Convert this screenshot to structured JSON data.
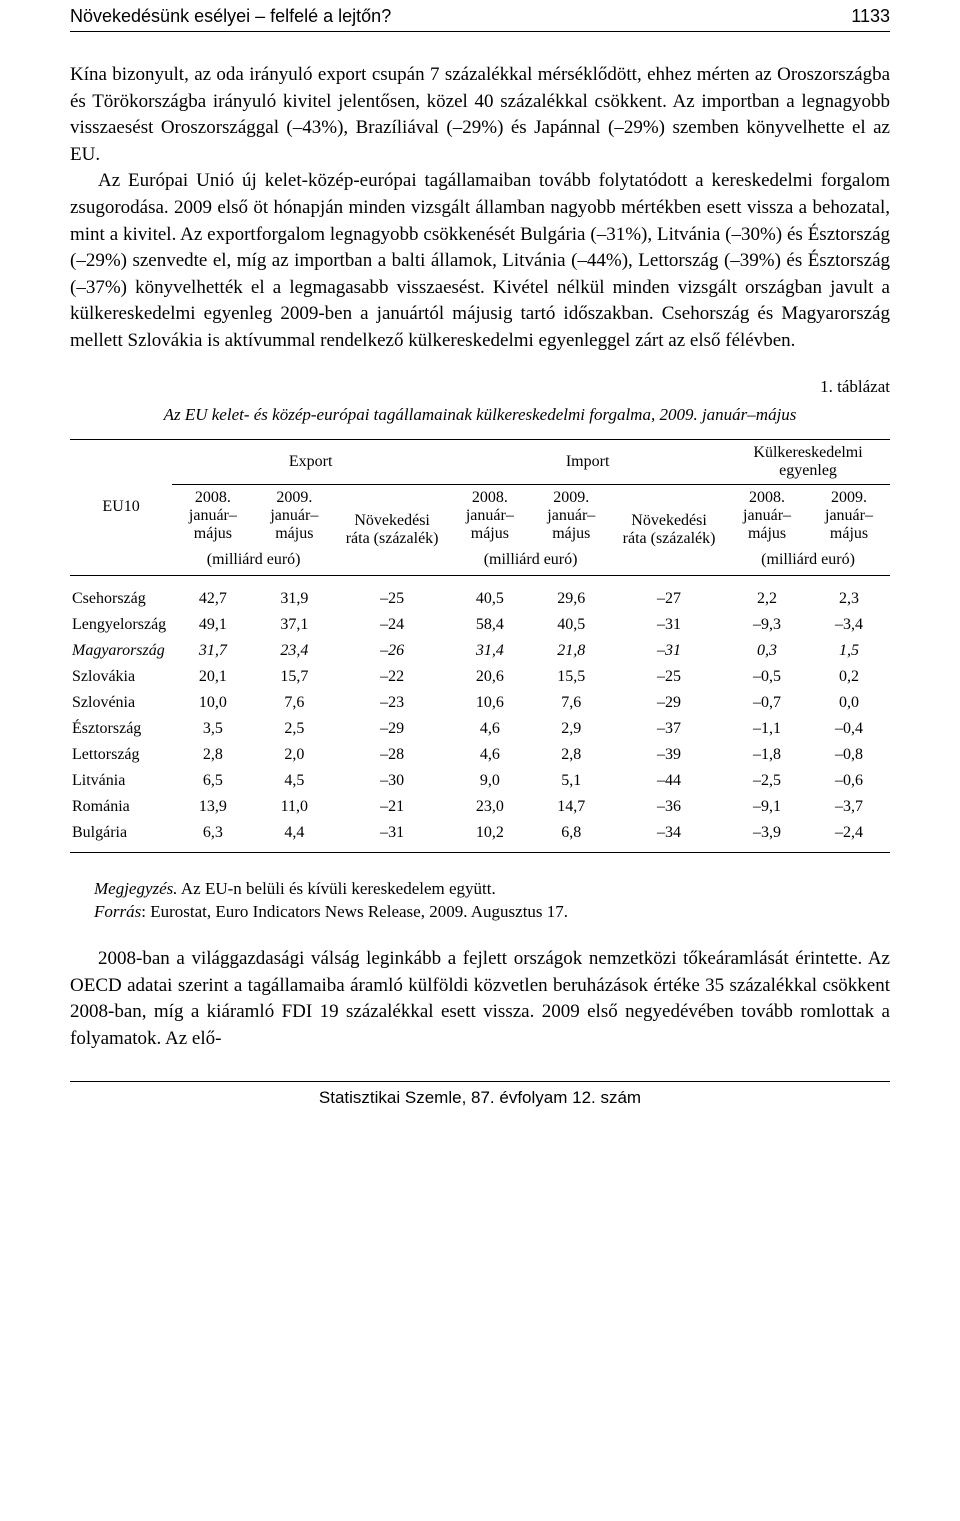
{
  "header": {
    "title": "Növekedésünk esélyei – felfelé a lejtőn?",
    "page_number": "1133"
  },
  "paragraph1": "Kína bizonyult, az oda irányuló export csupán 7 százalékkal mérséklődött, ehhez mérten az Oroszországba és Törökországba irányuló kivitel jelentősen, közel 40 százalékkal csökkent. Az importban a legnagyobb visszaesést Oroszországgal (–43%), Brazíliával (–29%) és Japánnal (–29%) szemben könyvelhette el az EU.",
  "paragraph2": "Az Európai Unió új kelet-közép-európai tagállamaiban tovább folytatódott a kereskedelmi forgalom zsugorodása. 2009 első öt hónapján minden vizsgált államban nagyobb mértékben esett vissza a behozatal, mint a kivitel. Az exportforgalom legnagyobb csökkenését Bulgária (–31%), Litvánia (–30%) és Észtország (–29%) szenvedte el, míg az importban a balti államok, Litvánia (–44%), Lettország (–39%) és Észtország (–37%) könyvelhették el a legmagasabb visszaesést. Kivétel nélkül minden vizsgált országban javult a külkereskedelmi egyenleg 2009-ben a januártól májusig tartó időszakban. Csehország és Magyarország mellett Szlovákia is aktívummal rendelkező külkereskedelmi egyenleggel zárt az első félévben.",
  "table": {
    "caption_num": "1. táblázat",
    "caption_title": "Az EU kelet- és közép-európai tagállamainak külkereskedelmi forgalma, 2009. január–május",
    "row_label": "EU10",
    "groups": [
      "Export",
      "Import",
      "Külkereskedelmi egyenleg"
    ],
    "sub_period_2008": "2008. január–május",
    "sub_period_2009": "2009. január–május",
    "sub_rate": "Növekedési ráta (százalék)",
    "unit": "(milliárd euró)",
    "rows": [
      {
        "name": "Csehország",
        "v": [
          "42,7",
          "31,9",
          "–25",
          "40,5",
          "29,6",
          "–27",
          "2,2",
          "2,3"
        ],
        "emph": false
      },
      {
        "name": "Lengyelország",
        "v": [
          "49,1",
          "37,1",
          "–24",
          "58,4",
          "40,5",
          "–31",
          "–9,3",
          "–3,4"
        ],
        "emph": false
      },
      {
        "name": "Magyarország",
        "v": [
          "31,7",
          "23,4",
          "–26",
          "31,4",
          "21,8",
          "–31",
          "0,3",
          "1,5"
        ],
        "emph": true
      },
      {
        "name": "Szlovákia",
        "v": [
          "20,1",
          "15,7",
          "–22",
          "20,6",
          "15,5",
          "–25",
          "–0,5",
          "0,2"
        ],
        "emph": false
      },
      {
        "name": "Szlovénia",
        "v": [
          "10,0",
          "7,6",
          "–23",
          "10,6",
          "7,6",
          "–29",
          "–0,7",
          "0,0"
        ],
        "emph": false
      },
      {
        "name": "Észtország",
        "v": [
          "3,5",
          "2,5",
          "–29",
          "4,6",
          "2,9",
          "–37",
          "–1,1",
          "–0,4"
        ],
        "emph": false
      },
      {
        "name": "Lettország",
        "v": [
          "2,8",
          "2,0",
          "–28",
          "4,6",
          "2,8",
          "–39",
          "–1,8",
          "–0,8"
        ],
        "emph": false
      },
      {
        "name": "Litvánia",
        "v": [
          "6,5",
          "4,5",
          "–30",
          "9,0",
          "5,1",
          "–44",
          "–2,5",
          "–0,6"
        ],
        "emph": false
      },
      {
        "name": "Románia",
        "v": [
          "13,9",
          "11,0",
          "–21",
          "23,0",
          "14,7",
          "–36",
          "–9,1",
          "–3,7"
        ],
        "emph": false
      },
      {
        "name": "Bulgária",
        "v": [
          "6,3",
          "4,4",
          "–31",
          "10,2",
          "6,8",
          "–34",
          "–3,9",
          "–2,4"
        ],
        "emph": false
      }
    ]
  },
  "notes": {
    "note_label": "Megjegyzés.",
    "note_text": " Az EU-n belüli és kívüli kereskedelem együtt.",
    "source_label": "Forrás",
    "source_text": ": Eurostat, Euro Indicators News Release, 2009. Augusztus 17."
  },
  "paragraph3": "2008-ban a világgazdasági válság leginkább a fejlett országok nemzetközi tőkeáramlását érintette. Az OECD adatai szerint a tagállamaiba áramló külföldi közvetlen beruházások értéke 35 százalékkal csökkent 2008-ban, míg a kiáramló FDI 19 százalékkal esett vissza. 2009 első negyedévében tovább romlottak a folyamatok. Az elő-",
  "footer": "Statisztikai Szemle, 87. évfolyam 12. szám"
}
